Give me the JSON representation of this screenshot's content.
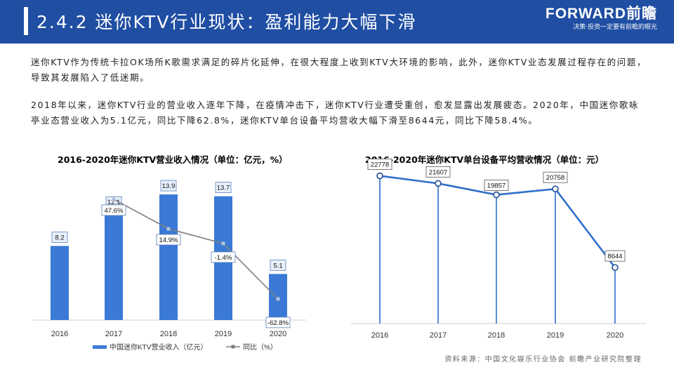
{
  "header": {
    "title": "2.4.2 迷你KTV行业现状：盈利能力大幅下滑",
    "brand_name": "FORWARD前瞻",
    "brand_slogan": "决策·投资一定要有前瞻的眼光"
  },
  "paragraphs": [
    "迷你KTV作为传统卡拉OK场所K歌需求满足的碎片化延伸，在很大程度上收到KTV大环境的影响，此外，迷你KTV业态发展过程存在的问题，导致其发展陷入了低迷期。",
    "2018年以来，迷你KTV行业的营业收入逐年下降，在疫情冲击下，迷你KTV行业遭受重创，愈发显露出发展疲态。2020年，中国迷你歌咏亭业态营业收入为5.1亿元，同比下降62.8%，迷你KTV单台设备平均营收大幅下滑至8644元，同比下降58.4%。"
  ],
  "source": "资料来源：中国文化娱乐行业协会 前瞻产业研究院整理",
  "chart_data": [
    {
      "type": "bar",
      "title": "2016-2020年迷你KTV营业收入情况（单位：亿元，%）",
      "categories": [
        "2016",
        "2017",
        "2018",
        "2019",
        "2020"
      ],
      "series": [
        {
          "name": "中国迷你KTV营业收入（亿元）",
          "type": "bar",
          "values": [
            8.2,
            12.1,
            13.9,
            13.7,
            5.1
          ],
          "color": "#3a7ad6"
        },
        {
          "name": "同比（%）",
          "type": "line",
          "axis": "secondary",
          "values": [
            null,
            47.6,
            14.9,
            -1.4,
            -62.8
          ],
          "color": "#7f7f7f"
        }
      ],
      "bar_labels": [
        "8.2",
        "12.1",
        "13.9",
        "13.7",
        "5.1"
      ],
      "line_labels": [
        "",
        "47.6%",
        "14.9%",
        "-1.4%",
        "-62.8%"
      ],
      "ylim": [
        0,
        16
      ],
      "y2lim": [
        -80,
        60
      ],
      "legend_position": "bottom"
    },
    {
      "type": "line",
      "title": "2016-2020年迷你KTV单台设备平均营收情况（单位：元）",
      "categories": [
        "2016",
        "2017",
        "2018",
        "2019",
        "2020"
      ],
      "series": [
        {
          "values": [
            22778,
            21607,
            19857,
            20758,
            8644
          ],
          "color": "#2f6ec8"
        }
      ],
      "labels": [
        "22778",
        "21607",
        "19857",
        "20758",
        "8644"
      ],
      "ylim": [
        0,
        25000
      ],
      "drop_lines": true
    }
  ]
}
